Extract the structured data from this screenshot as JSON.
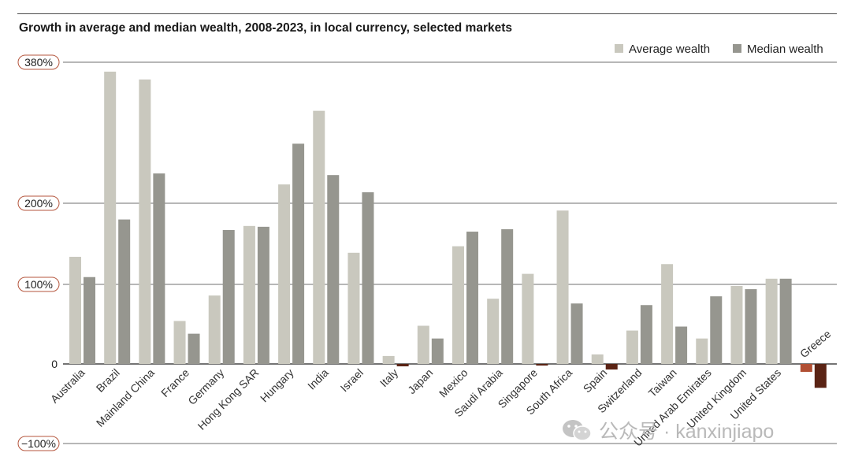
{
  "chart_data": {
    "type": "bar",
    "title": "Growth in average and median wealth, 2008-2023, in local currency, selected markets",
    "xlabel": "",
    "ylabel": "",
    "ylim": [
      -100,
      380
    ],
    "yticks": [
      {
        "value": 380,
        "label": "380%"
      },
      {
        "value": 200,
        "label": "200%"
      },
      {
        "value": 100,
        "label": "100%"
      },
      {
        "value": 0,
        "label": "0"
      },
      {
        "value": -100,
        "label": "−100%"
      }
    ],
    "categories": [
      "Australia",
      "Brazil",
      "Mainland China",
      "France",
      "Germany",
      "Hong Kong SAR",
      "Hungary",
      "India",
      "Israel",
      "Italy",
      "Japan",
      "Mexico",
      "Saudi Arabia",
      "Singapore",
      "South Africa",
      "Spain",
      "Switzerland",
      "Taiwan",
      "United Arab Emirates",
      "United Kingdom",
      "United States",
      "Greece"
    ],
    "series": [
      {
        "name": "Average wealth",
        "color": "#c9c8be",
        "negative_color": "#b14f33",
        "values": [
          134,
          368,
          358,
          54,
          86,
          172,
          224,
          318,
          139,
          10,
          48,
          147,
          82,
          113,
          191,
          12,
          42,
          125,
          32,
          98,
          107,
          -10
        ]
      },
      {
        "name": "Median wealth",
        "color": "#96968f",
        "negative_color": "#5a2314",
        "values": [
          109,
          180,
          238,
          38,
          167,
          171,
          276,
          236,
          214,
          -3,
          32,
          165,
          168,
          -2,
          76,
          -7,
          74,
          47,
          85,
          94,
          107,
          -30
        ]
      }
    ],
    "legend_position": "top-right",
    "grid": true
  },
  "watermark": {
    "text": "公众号 · kanxinjiapo",
    "icon": "wechat-icon"
  }
}
